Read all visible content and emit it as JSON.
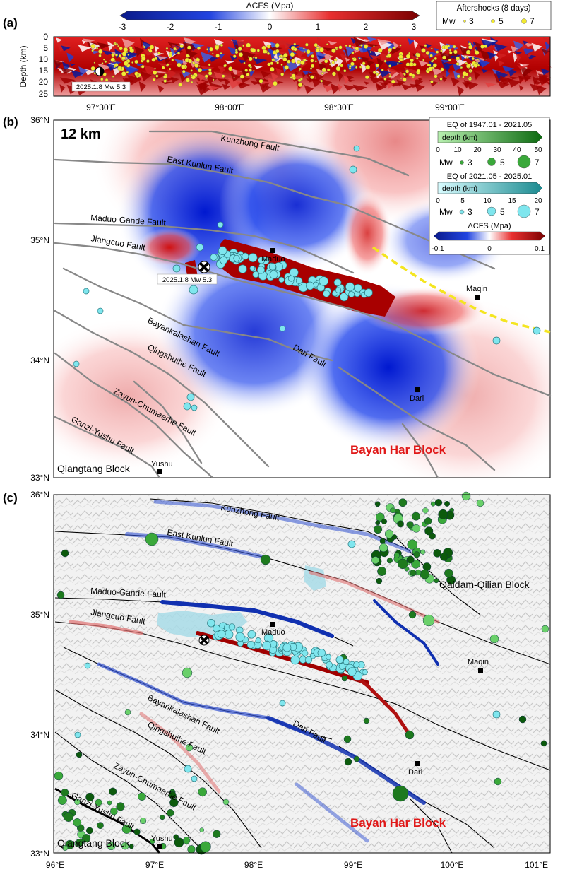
{
  "panels": {
    "a": "(a)",
    "b": "(b)",
    "c": "(c)"
  },
  "colorbar_top": {
    "title": "ΔCFS (Mpa)",
    "ticks": [
      "-3",
      "-2",
      "-1",
      "0",
      "1",
      "2",
      "3"
    ]
  },
  "aftershock_legend": {
    "title": "Aftershocks (8 days)",
    "mw_label": "Mw",
    "sizes": [
      "3",
      "5",
      "7"
    ]
  },
  "panel_a": {
    "ylabel": "Depth (km)",
    "yticks": [
      "0",
      "5",
      "10",
      "15",
      "20",
      "25"
    ],
    "xticks": [
      "97°30′E",
      "98°00′E",
      "98°30′E",
      "99°00′E"
    ],
    "event_label": "2025.1.8 Mw 5.3"
  },
  "panel_b": {
    "depth_label": "12 km",
    "lat_ticks": [
      "36°N",
      "35°N",
      "34°N",
      "33°N"
    ],
    "faults": {
      "kunzhong": "Kunzhong Fault",
      "east_kunlun": "East Kunlun Fault",
      "maduo_gande": "Maduo-Gande Fault",
      "jiangcuo": "Jiangcuo Fault",
      "bayankalashan": "Bayankalashan Fault",
      "qingshuihe": "Qingshuihe Fault",
      "zayun": "Zayun-Chumaerhe Fault",
      "ganzi": "Ganzi-Yushu Fault",
      "dari": "Dari Fault"
    },
    "cities": {
      "maduo": "Maduo",
      "maqin": "Maqin",
      "dari": "Dari",
      "yushu": "Yushu"
    },
    "blocks": {
      "bayan_har": "Bayan Har Block",
      "qiangtang": "Qiangtang Block"
    },
    "event_label": "2025.1.8 Mw 5.3",
    "legend": {
      "eq1_title": "EQ of 1947.01 - 2021.05",
      "depth_label": "depth (km)",
      "eq1_ticks": [
        "0",
        "10",
        "20",
        "30",
        "40",
        "50"
      ],
      "mw_label": "Mw",
      "sizes": [
        "3",
        "5",
        "7"
      ],
      "eq2_title": "EQ of 2021.05 - 2025.01",
      "eq2_ticks": [
        "0",
        "5",
        "10",
        "15",
        "20"
      ],
      "cfs_title": "ΔCFS (Mpa)",
      "cfs_ticks": [
        "-0.1",
        "0",
        "0.1"
      ]
    }
  },
  "panel_c": {
    "lat_ticks": [
      "36°N",
      "35°N",
      "34°N",
      "33°N"
    ],
    "lon_ticks": [
      "96°E",
      "97°E",
      "98°E",
      "99°E",
      "100°E",
      "101°E"
    ],
    "faults": {
      "kunzhong": "Kunzhong Fault",
      "east_kunlun": "East Kunlun Fault",
      "maduo_gande": "Maduo-Gande Fault",
      "jiangcuo": "Jiangcuo Fault",
      "bayankalashan": "Bayankalashan Fault",
      "qingshuihe": "Qingshuihe Fault",
      "zayun": "Zayun-Chumaerhe Fault",
      "ganzi": "Ganzi-Yushu Fault",
      "dari": "Dari Fault"
    },
    "cities": {
      "maduo": "Maduo",
      "maqin": "Maqin",
      "dari": "Dari",
      "yushu": "Yushu"
    },
    "blocks": {
      "bayan_har": "Bayan Har Block",
      "qiangtang": "Qiangtang Block",
      "qaidam": "Qaidam-Qilian Block"
    }
  },
  "colors": {
    "blue": "#1030c0",
    "red": "#b00000",
    "cyan": "#7fe6ee",
    "green": "#3aa83a",
    "yellow": "#f2ea30"
  }
}
